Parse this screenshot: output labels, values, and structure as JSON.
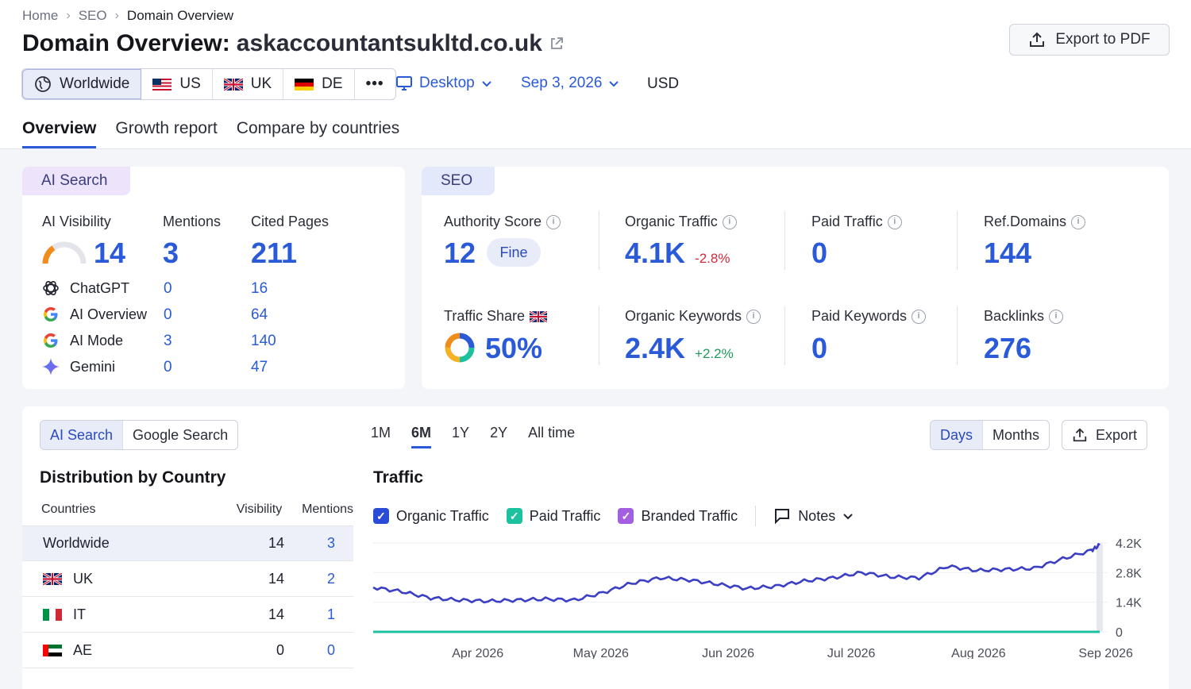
{
  "breadcrumb": [
    "Home",
    "SEO",
    "Domain Overview"
  ],
  "title": {
    "prefix": "Domain Overview:",
    "domain": "askaccountantsukltd.co.uk"
  },
  "export_pdf_label": "Export to PDF",
  "locations": [
    {
      "label": "Worldwide",
      "icon": "globe-icon"
    },
    {
      "label": "US",
      "icon": "flag-us-icon"
    },
    {
      "label": "UK",
      "icon": "flag-uk-icon"
    },
    {
      "label": "DE",
      "icon": "flag-de-icon"
    },
    {
      "label": "•••",
      "icon": "more-icon"
    }
  ],
  "device": "Desktop",
  "date": "Sep 3, 2026",
  "currency": "USD",
  "tabs": [
    "Overview",
    "Growth report",
    "Compare by countries"
  ],
  "ai_search": {
    "pill": "AI Search",
    "visibility_label": "AI Visibility",
    "visibility_value": "14",
    "visibility_fraction": 0.14,
    "mentions_label": "Mentions",
    "mentions_value": "3",
    "cited_label": "Cited Pages",
    "cited_value": "211",
    "sources": [
      {
        "name": "ChatGPT",
        "icon": "chatgpt-icon",
        "mentions": "0",
        "cited": "16"
      },
      {
        "name": "AI Overview",
        "icon": "google-icon",
        "mentions": "0",
        "cited": "64"
      },
      {
        "name": "AI Mode",
        "icon": "google-icon",
        "mentions": "3",
        "cited": "140"
      },
      {
        "name": "Gemini",
        "icon": "gemini-icon",
        "mentions": "0",
        "cited": "47"
      }
    ]
  },
  "seo": {
    "pill": "SEO",
    "authority_label": "Authority Score",
    "authority_value": "12",
    "authority_badge": "Fine",
    "organic_traffic_label": "Organic Traffic",
    "organic_traffic_value": "4.1K",
    "organic_traffic_change": "-2.8%",
    "paid_traffic_label": "Paid Traffic",
    "paid_traffic_value": "0",
    "ref_domains_label": "Ref.Domains",
    "ref_domains_value": "144",
    "traffic_share_label": "Traffic Share",
    "traffic_share_value": "50%",
    "organic_keywords_label": "Organic Keywords",
    "organic_keywords_value": "2.4K",
    "organic_keywords_change": "+2.2%",
    "paid_keywords_label": "Paid Keywords",
    "paid_keywords_value": "0",
    "backlinks_label": "Backlinks",
    "backlinks_value": "276"
  },
  "distribution": {
    "toggle": [
      "AI Search",
      "Google Search"
    ],
    "title": "Distribution by Country",
    "columns": [
      "Countries",
      "Visibility",
      "Mentions"
    ],
    "rows": [
      {
        "country": "Worldwide",
        "flag": "",
        "visibility": "14",
        "mentions": "3"
      },
      {
        "country": "UK",
        "flag": "flag-uk-icon",
        "visibility": "14",
        "mentions": "2"
      },
      {
        "country": "IT",
        "flag": "flag-it-icon",
        "visibility": "14",
        "mentions": "1"
      },
      {
        "country": "AE",
        "flag": "flag-ae-icon",
        "visibility": "0",
        "mentions": "0"
      }
    ]
  },
  "traffic": {
    "periods": [
      "1M",
      "6M",
      "1Y",
      "2Y",
      "All time"
    ],
    "active_period": "6M",
    "title": "Traffic",
    "granularity": [
      "Days",
      "Months"
    ],
    "export_label": "Export",
    "legend": [
      {
        "label": "Organic Traffic",
        "color": "#2a4bd6"
      },
      {
        "label": "Paid Traffic",
        "color": "#1cc2a0"
      },
      {
        "label": "Branded Traffic",
        "color": "#a45ee0"
      }
    ],
    "notes_label": "Notes"
  },
  "chart_data": {
    "type": "line",
    "yticks": [
      "4.2K",
      "2.8K",
      "1.4K",
      "0"
    ],
    "ylim": [
      0,
      4200
    ],
    "xticks": [
      "Apr 2026",
      "May 2026",
      "Jun 2026",
      "Jul 2026",
      "Aug 2026",
      "Sep 2026"
    ],
    "series": [
      {
        "name": "Organic Traffic",
        "color": "#3b3fc4",
        "x": [
          "2026-03-10",
          "2026-03-17",
          "2026-03-24",
          "2026-03-31",
          "2026-04-07",
          "2026-04-14",
          "2026-04-21",
          "2026-04-28",
          "2026-05-05",
          "2026-05-12",
          "2026-05-19",
          "2026-05-26",
          "2026-06-02",
          "2026-06-09",
          "2026-06-16",
          "2026-06-23",
          "2026-06-30",
          "2026-07-07",
          "2026-07-14",
          "2026-07-21",
          "2026-07-28",
          "2026-08-04",
          "2026-08-11",
          "2026-08-18",
          "2026-08-25",
          "2026-09-01",
          "2026-09-03"
        ],
        "values": [
          2100,
          1900,
          1600,
          1500,
          1450,
          1500,
          1550,
          1500,
          1850,
          2300,
          2550,
          2450,
          2250,
          2050,
          2150,
          2400,
          2550,
          2800,
          2600,
          2550,
          3100,
          2900,
          2950,
          3000,
          3450,
          3850,
          4100
        ]
      },
      {
        "name": "Paid Traffic",
        "color": "#1cc2a0",
        "x": [
          "2026-03-10",
          "2026-09-03"
        ],
        "values": [
          0,
          0
        ]
      },
      {
        "name": "Branded Traffic",
        "color": "#a45ee0",
        "x": [
          "2026-03-10",
          "2026-09-03"
        ],
        "values": [
          0,
          0
        ]
      }
    ]
  }
}
